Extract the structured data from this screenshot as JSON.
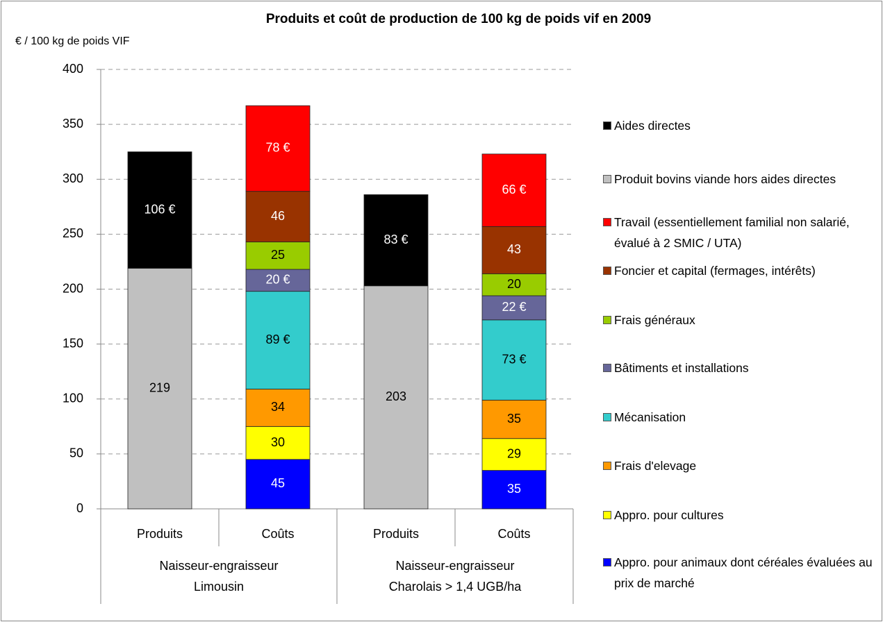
{
  "chart_data": {
    "type": "stacked_bar",
    "title": "Produits et coût de production de 100 kg de poids vif en 2009",
    "y_label": "€ / 100 kg de poids VIF",
    "categories": [
      "Produits",
      "Coûts",
      "Produits",
      "Coûts"
    ],
    "groups": [
      {
        "label": "Naisseur-engraisseur Limousin",
        "span": 2
      },
      {
        "label": "Naisseur-engraisseur Charolais > 1,4 UGB/ha",
        "span": 2
      }
    ],
    "ylim": [
      0,
      400
    ],
    "yticks": [
      0,
      50,
      100,
      150,
      200,
      250,
      300,
      350,
      400
    ],
    "grid": true,
    "legend": "right",
    "series": [
      {
        "name": "Aides  directes",
        "color": "#000000",
        "values": [
          106,
          null,
          83,
          null
        ],
        "value_labels": [
          "106 €",
          null,
          "83 €",
          null
        ]
      },
      {
        "name": "Produit bovins viande hors aides directes",
        "color": "#c0c0c0",
        "values": [
          219,
          null,
          203,
          null
        ]
      },
      {
        "name": "Travail (essentiellement familial non salarié, évalué à 2 SMIC / UTA)",
        "color": "#ff0000",
        "values": [
          null,
          78,
          null,
          66
        ],
        "value_labels": [
          null,
          "78 €",
          null,
          "66 €"
        ]
      },
      {
        "name": "Foncier et capital (fermages, intérêts)",
        "color": "#993300",
        "values": [
          null,
          46,
          null,
          43
        ]
      },
      {
        "name": "Frais généraux",
        "color": "#99cc00",
        "values": [
          null,
          25,
          null,
          20
        ]
      },
      {
        "name": "Bâtiments et installations",
        "color": "#666699",
        "values": [
          null,
          20,
          null,
          22
        ],
        "value_labels": [
          null,
          "20 €",
          null,
          "22 €"
        ]
      },
      {
        "name": "Mécanisation",
        "color": "#33cccc",
        "values": [
          null,
          89,
          null,
          73
        ],
        "value_labels": [
          null,
          "89 €",
          null,
          "73 €"
        ]
      },
      {
        "name": "Frais d'elevage",
        "color": "#ff9900",
        "values": [
          null,
          34,
          null,
          35
        ]
      },
      {
        "name": "Appro. pour cultures",
        "color": "#ffff00",
        "values": [
          null,
          30,
          null,
          29
        ]
      },
      {
        "name": "Appro. pour animaux dont céréales évaluées au prix de marché",
        "color": "#0000ff",
        "values": [
          null,
          45,
          null,
          35
        ]
      }
    ]
  }
}
